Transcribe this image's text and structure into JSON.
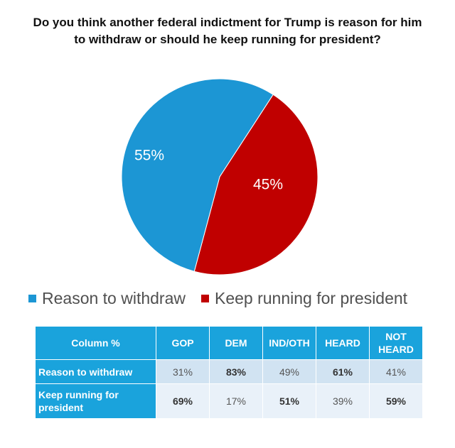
{
  "chart_data": {
    "type": "pie",
    "title": "Do you think another federal indictment for Trump is reason for him to withdraw or should he keep running for president?",
    "slices": [
      {
        "label": "Reason to withdraw",
        "value": 55,
        "value_label": "55%",
        "color": "#1c96d4"
      },
      {
        "label": "Keep running for president",
        "value": 45,
        "value_label": "45%",
        "color": "#c00000"
      }
    ],
    "legend_position": "bottom"
  },
  "table": {
    "headers": [
      "Column %",
      "GOP",
      "DEM",
      "IND/OTH",
      "HEARD",
      "NOT HEARD"
    ],
    "rows": [
      {
        "label": "Reason to withdraw",
        "cells": [
          "31%",
          "83%",
          "49%",
          "61%",
          "41%"
        ],
        "bold": [
          false,
          true,
          false,
          true,
          false
        ]
      },
      {
        "label": "Keep running for president",
        "cells": [
          "69%",
          "17%",
          "51%",
          "39%",
          "59%"
        ],
        "bold": [
          true,
          false,
          true,
          false,
          true
        ]
      }
    ]
  }
}
